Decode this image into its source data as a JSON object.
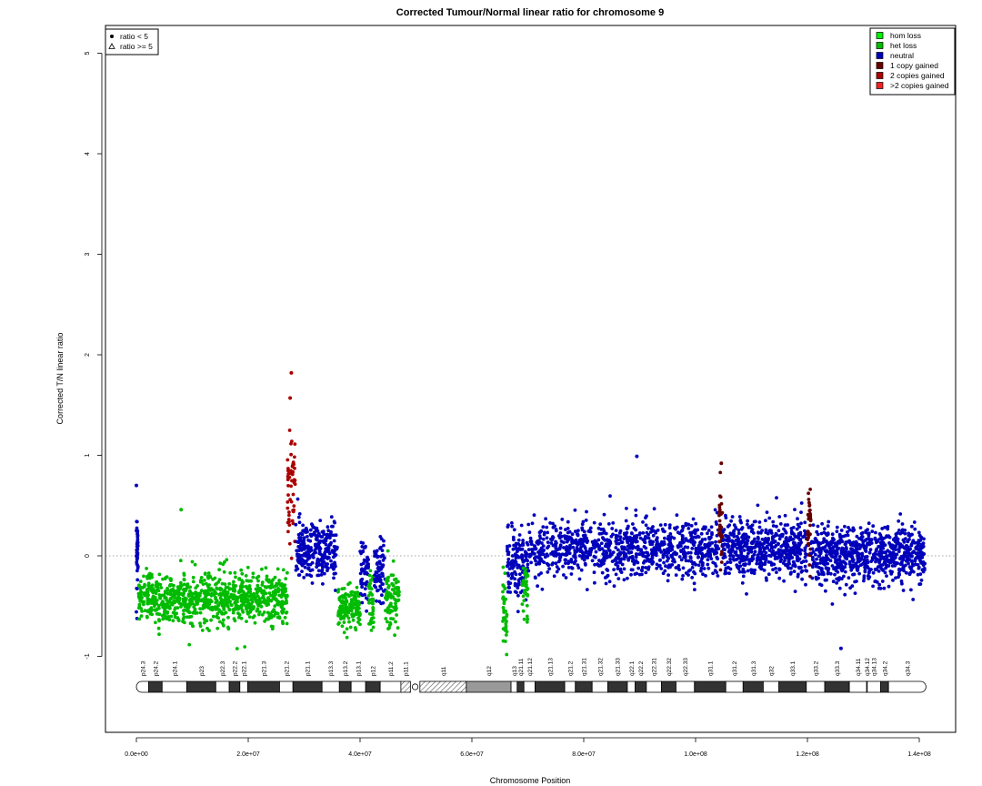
{
  "chart_data": {
    "type": "scatter",
    "title": "Corrected Tumour/Normal linear ratio for chromosome  9",
    "xlabel": "Chromosome Position",
    "ylabel": "Corrected T/N linear ratio",
    "xlim": [
      0,
      145000000
    ],
    "ylim": [
      -1.8,
      5.3
    ],
    "x_ticks": [
      {
        "value": 0,
        "label": "0.0e+00"
      },
      {
        "value": 20000000,
        "label": "2.0e+07"
      },
      {
        "value": 40000000,
        "label": "4.0e+07"
      },
      {
        "value": 60000000,
        "label": "6.0e+07"
      },
      {
        "value": 80000000,
        "label": "8.0e+07"
      },
      {
        "value": 100000000,
        "label": "1.0e+08"
      },
      {
        "value": 120000000,
        "label": "1.2e+08"
      },
      {
        "value": 140000000,
        "label": "1.4e+08"
      }
    ],
    "y_ticks": [
      {
        "value": -1,
        "label": "-1"
      },
      {
        "value": 0,
        "label": "0"
      },
      {
        "value": 1,
        "label": "1"
      },
      {
        "value": 2,
        "label": "2"
      },
      {
        "value": 3,
        "label": "3"
      },
      {
        "value": 4,
        "label": "4"
      },
      {
        "value": 5,
        "label": "5"
      }
    ],
    "reference_line": {
      "y": 0,
      "style": "dotted",
      "color": "#888888"
    },
    "shape_legend": {
      "position": "top-left",
      "entries": [
        {
          "symbol": "filled-circle",
          "label": "ratio < 5"
        },
        {
          "symbol": "open-triangle",
          "label": "ratio >= 5"
        }
      ]
    },
    "color_legend": {
      "position": "top-right",
      "entries": [
        {
          "label": "hom loss",
          "color": "#00ee00"
        },
        {
          "label": "het loss",
          "color": "#00bb00"
        },
        {
          "label": "neutral",
          "color": "#0000bb"
        },
        {
          "label": "1 copy gained",
          "color": "#660000"
        },
        {
          "label": "2 copies gained",
          "color": "#aa0000"
        },
        {
          "label": ">2 copies gained",
          "color": "#ee2222"
        }
      ]
    },
    "segments": [
      {
        "state": "neutral",
        "start": 0,
        "end": 300000,
        "mean": 0.05,
        "sd": 0.22
      },
      {
        "state": "het loss",
        "start": 300000,
        "end": 27000000,
        "mean": -0.42,
        "sd": 0.12
      },
      {
        "state": "2 copies gained",
        "start": 27000000,
        "end": 28500000,
        "mean": 0.65,
        "sd": 0.32
      },
      {
        "state": "neutral",
        "start": 28500000,
        "end": 36000000,
        "mean": 0.05,
        "sd": 0.15
      },
      {
        "state": "het loss",
        "start": 36000000,
        "end": 40000000,
        "mean": -0.5,
        "sd": 0.1
      },
      {
        "state": "neutral",
        "start": 40000000,
        "end": 41500000,
        "mean": -0.15,
        "sd": 0.15
      },
      {
        "state": "het loss",
        "start": 41500000,
        "end": 42500000,
        "mean": -0.45,
        "sd": 0.15
      },
      {
        "state": "neutral",
        "start": 42500000,
        "end": 44500000,
        "mean": -0.15,
        "sd": 0.15
      },
      {
        "state": "het loss",
        "start": 44500000,
        "end": 47000000,
        "mean": -0.4,
        "sd": 0.14
      },
      {
        "state": "het loss",
        "start": 65500000,
        "end": 66300000,
        "mean": -0.5,
        "sd": 0.15
      },
      {
        "state": "neutral",
        "start": 66300000,
        "end": 70000000,
        "mean": -0.1,
        "sd": 0.17
      },
      {
        "state": "het loss",
        "start": 69000000,
        "end": 70000000,
        "mean": -0.35,
        "sd": 0.12
      },
      {
        "state": "neutral",
        "start": 70000000,
        "end": 104200000,
        "mean": 0.07,
        "sd": 0.14
      },
      {
        "state": "1 copy gained",
        "start": 104200000,
        "end": 104800000,
        "mean": 0.3,
        "sd": 0.25
      },
      {
        "state": "neutral",
        "start": 104800000,
        "end": 120000000,
        "mean": 0.07,
        "sd": 0.14
      },
      {
        "state": "1 copy gained",
        "start": 120000000,
        "end": 120600000,
        "mean": 0.3,
        "sd": 0.2
      },
      {
        "state": "neutral",
        "start": 120600000,
        "end": 141000000,
        "mean": 0.0,
        "sd": 0.14
      }
    ],
    "notable_points": [
      {
        "x": 27700000,
        "y": 1.82,
        "state": "2 copies gained"
      },
      {
        "x": 27500000,
        "y": 1.57,
        "state": "2 copies gained"
      },
      {
        "x": 0,
        "y": 0.7,
        "state": "neutral"
      },
      {
        "x": 89500000,
        "y": 0.99,
        "state": "neutral"
      },
      {
        "x": 104600000,
        "y": 0.92,
        "state": "1 copy gained"
      },
      {
        "x": 8000000,
        "y": 0.46,
        "state": "het loss"
      },
      {
        "x": 126000000,
        "y": -0.92,
        "state": "neutral"
      }
    ],
    "ideogram": {
      "bands": [
        {
          "name": "p24.3",
          "start": 0,
          "end": 2200000,
          "stain": "gneg"
        },
        {
          "name": "p24.2",
          "start": 2200000,
          "end": 4600000,
          "stain": "gpos"
        },
        {
          "name": "p24.1",
          "start": 4600000,
          "end": 9000000,
          "stain": "gneg"
        },
        {
          "name": "p23",
          "start": 9000000,
          "end": 14200000,
          "stain": "gpos"
        },
        {
          "name": "p22.3",
          "start": 14200000,
          "end": 16600000,
          "stain": "gneg"
        },
        {
          "name": "p22.2",
          "start": 16600000,
          "end": 18500000,
          "stain": "gpos"
        },
        {
          "name": "p22.1",
          "start": 18500000,
          "end": 19900000,
          "stain": "gneg"
        },
        {
          "name": "p21.3",
          "start": 19900000,
          "end": 25600000,
          "stain": "gpos"
        },
        {
          "name": "p21.2",
          "start": 25600000,
          "end": 28000000,
          "stain": "gneg"
        },
        {
          "name": "p21.1",
          "start": 28000000,
          "end": 33200000,
          "stain": "gpos"
        },
        {
          "name": "p13.3",
          "start": 33200000,
          "end": 36300000,
          "stain": "gneg"
        },
        {
          "name": "p13.2",
          "start": 36300000,
          "end": 38400000,
          "stain": "gpos"
        },
        {
          "name": "p13.1",
          "start": 38400000,
          "end": 41000000,
          "stain": "gneg"
        },
        {
          "name": "p12",
          "start": 41000000,
          "end": 43600000,
          "stain": "gpos"
        },
        {
          "name": "p11.2",
          "start": 43600000,
          "end": 47300000,
          "stain": "gneg"
        },
        {
          "name": "p11.1",
          "start": 47300000,
          "end": 49000000,
          "stain": "stalk"
        },
        {
          "name": "q11",
          "start": 50700000,
          "end": 59000000,
          "stain": "stalk"
        },
        {
          "name": "q12",
          "start": 59000000,
          "end": 67000000,
          "stain": "gvar"
        },
        {
          "name": "q13",
          "start": 67000000,
          "end": 68100000,
          "stain": "gneg"
        },
        {
          "name": "q21.11",
          "start": 68100000,
          "end": 69300000,
          "stain": "gpos"
        },
        {
          "name": "q21.12",
          "start": 69300000,
          "end": 71300000,
          "stain": "gneg"
        },
        {
          "name": "q21.13",
          "start": 71300000,
          "end": 76600000,
          "stain": "gpos"
        },
        {
          "name": "q21.2",
          "start": 76600000,
          "end": 78500000,
          "stain": "gneg"
        },
        {
          "name": "q21.31",
          "start": 78500000,
          "end": 81500000,
          "stain": "gpos"
        },
        {
          "name": "q21.32",
          "start": 81500000,
          "end": 84300000,
          "stain": "gneg"
        },
        {
          "name": "q21.33",
          "start": 84300000,
          "end": 87800000,
          "stain": "gpos"
        },
        {
          "name": "q22.1",
          "start": 87800000,
          "end": 89200000,
          "stain": "gneg"
        },
        {
          "name": "q22.2",
          "start": 89200000,
          "end": 91200000,
          "stain": "gpos"
        },
        {
          "name": "q22.31",
          "start": 91200000,
          "end": 93900000,
          "stain": "gneg"
        },
        {
          "name": "q22.32",
          "start": 93900000,
          "end": 96500000,
          "stain": "gpos"
        },
        {
          "name": "q22.33",
          "start": 96500000,
          "end": 99800000,
          "stain": "gneg"
        },
        {
          "name": "q31.1",
          "start": 99800000,
          "end": 105400000,
          "stain": "gpos"
        },
        {
          "name": "q31.2",
          "start": 105400000,
          "end": 108500000,
          "stain": "gneg"
        },
        {
          "name": "q31.3",
          "start": 108500000,
          "end": 112100000,
          "stain": "gpos"
        },
        {
          "name": "q32",
          "start": 112100000,
          "end": 114900000,
          "stain": "gneg"
        },
        {
          "name": "q33.1",
          "start": 114900000,
          "end": 119800000,
          "stain": "gpos"
        },
        {
          "name": "q33.2",
          "start": 119800000,
          "end": 123100000,
          "stain": "gneg"
        },
        {
          "name": "q33.3",
          "start": 123100000,
          "end": 127500000,
          "stain": "gpos"
        },
        {
          "name": "q34.11",
          "start": 127500000,
          "end": 130600000,
          "stain": "gneg"
        },
        {
          "name": "q34.12",
          "start": 130600000,
          "end": 130700000,
          "stain": "gpos"
        },
        {
          "name": "q34.13",
          "start": 130700000,
          "end": 133100000,
          "stain": "gneg"
        },
        {
          "name": "q34.2",
          "start": 133100000,
          "end": 134500000,
          "stain": "gpos"
        },
        {
          "name": "q34.3",
          "start": 134500000,
          "end": 141200000,
          "stain": "gneg"
        }
      ]
    },
    "colors": {
      "gpos": "#333333",
      "gneg": "#ffffff",
      "gvar": "#999999",
      "outline": "#000000"
    }
  }
}
